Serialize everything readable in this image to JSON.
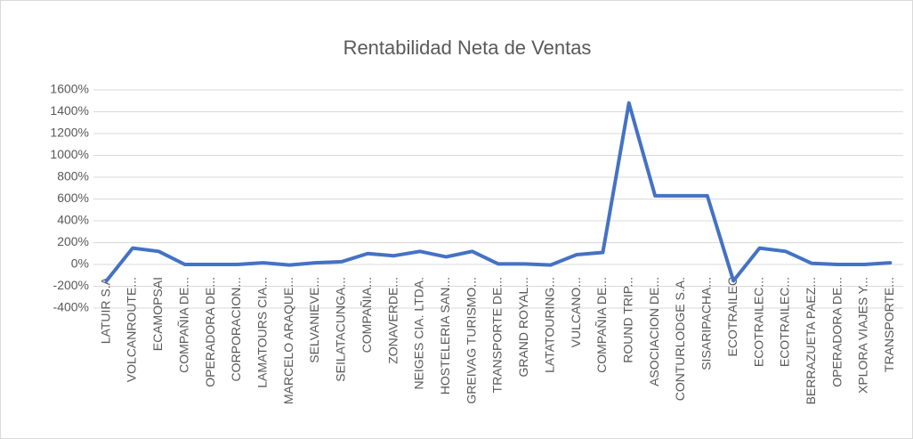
{
  "chart_data": {
    "type": "line",
    "title": "Rentabilidad Neta de Ventas",
    "categories": [
      "LATUIR S.A",
      "VOLCANROUTE...",
      "ECAMOPSAI",
      "COMPAÑIA DE...",
      "OPERADORA DE...",
      "CORPORACION...",
      "LAMATOURS CIA...",
      "MARCELO ARAQUE...",
      "SELVANIEVE...",
      "SEILATACUNGA...",
      "COMPAÑIA...",
      "ZONAVERDE...",
      "NEIGES CIA. LTDA.",
      "HOSTELERIA SAN...",
      "GREIVAG TURISMO...",
      "TRANSPORTE DE...",
      "GRAND ROYAL...",
      "LATATOURING...",
      "VULCANO...",
      "COMPAÑIA DE...",
      "ROUND TRIP...",
      "ASOCIACION DE...",
      "CONTURLODGE S.A.",
      "SISARIPACHA...",
      "ECOTRAILEC",
      "ECOTRAILEC...",
      "ECOTRAILEC...",
      "BERRAZUETA PAEZ...",
      "OPERADORA DE...",
      "XPLORA VIAJES Y...",
      "TRANSPORTE..."
    ],
    "series": [
      {
        "name": "Rentabilidad Neta de Ventas",
        "color": "#4472c4",
        "values": [
          -150,
          150,
          120,
          0,
          0,
          0,
          15,
          -5,
          15,
          25,
          100,
          80,
          120,
          70,
          120,
          5,
          5,
          -5,
          90,
          110,
          1480,
          630,
          630,
          630,
          -150,
          150,
          120,
          10,
          0,
          0,
          15
        ]
      }
    ],
    "ylim": [
      -400,
      1600
    ],
    "yticks": [
      {
        "value": -400,
        "label": "-400%"
      },
      {
        "value": -200,
        "label": "-200%"
      },
      {
        "value": 0,
        "label": "0%"
      },
      {
        "value": 200,
        "label": "200%"
      },
      {
        "value": 400,
        "label": "400%"
      },
      {
        "value": 600,
        "label": "600%"
      },
      {
        "value": 800,
        "label": "800%"
      },
      {
        "value": 1000,
        "label": "1000%"
      },
      {
        "value": 1200,
        "label": "1200%"
      },
      {
        "value": 1400,
        "label": "1400%"
      },
      {
        "value": 1600,
        "label": "1600%"
      }
    ],
    "grid": true
  }
}
